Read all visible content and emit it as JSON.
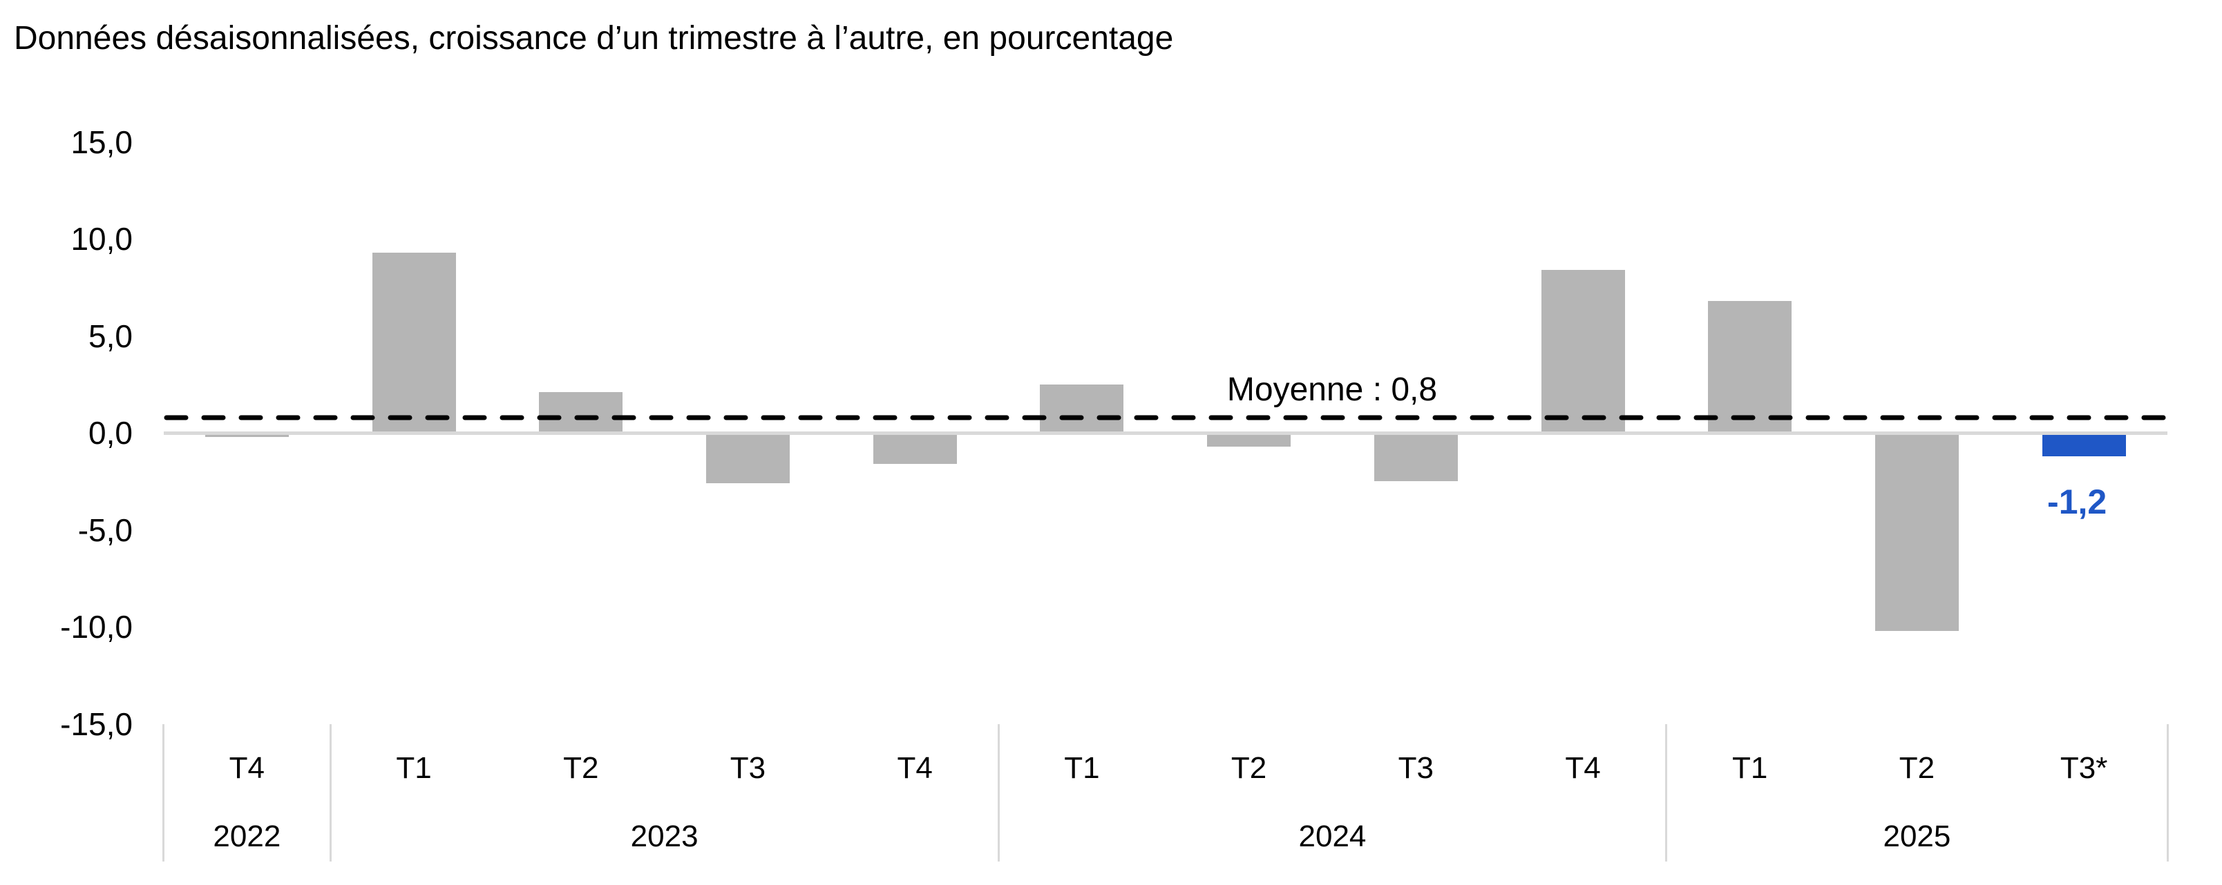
{
  "title": "Données désaisonnalisées, croissance d’un trimestre à l’autre, en pourcentage",
  "chart_data": {
    "type": "bar",
    "categories": [
      "T4",
      "T1",
      "T2",
      "T3",
      "T4",
      "T1",
      "T2",
      "T3",
      "T4",
      "T1",
      "T2",
      "T3*"
    ],
    "year_groups": [
      {
        "label": "2022",
        "start": 0,
        "span": 1
      },
      {
        "label": "2023",
        "start": 1,
        "span": 4
      },
      {
        "label": "2024",
        "start": 5,
        "span": 4
      },
      {
        "label": "2025",
        "start": 9,
        "span": 3
      }
    ],
    "values": [
      -0.2,
      9.3,
      2.1,
      -2.6,
      -1.6,
      2.5,
      -0.7,
      -2.5,
      8.4,
      6.8,
      -10.2,
      -1.2
    ],
    "unit": "pourcentage",
    "y_ticks": [
      {
        "label": "15,0",
        "value": 15
      },
      {
        "label": "10,0",
        "value": 10
      },
      {
        "label": "5,0",
        "value": 5
      },
      {
        "label": "0,0",
        "value": 0
      },
      {
        "label": "-5,0",
        "value": -5
      },
      {
        "label": "-10,0",
        "value": -10
      },
      {
        "label": "-15,0",
        "value": -15
      }
    ],
    "ylim": [
      -15,
      15
    ],
    "grid": false,
    "legend": null,
    "mean_line": {
      "value": 0.8,
      "label": "Moyenne : 0,8",
      "style": "dashed",
      "color": "#000000"
    },
    "highlight": {
      "index": 11,
      "label": "-1,2",
      "color": "#1f57c6"
    },
    "bar_color": "#b5b5b5",
    "axis_line_color": "#d9d9d9"
  }
}
